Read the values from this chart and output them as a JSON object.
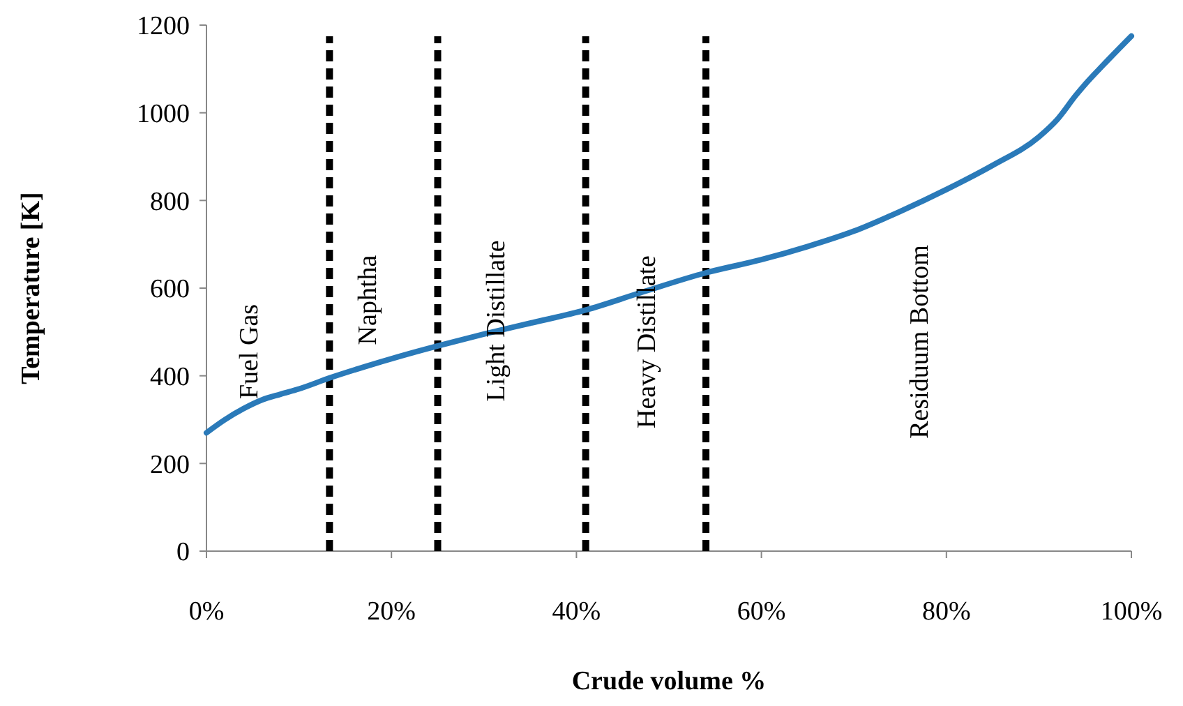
{
  "chart_data": {
    "type": "line",
    "xlabel": "Crude volume %",
    "ylabel": "Temperature [K]",
    "x": [
      0,
      2,
      4,
      6,
      8,
      10,
      13.3,
      17,
      21,
      25,
      30,
      35,
      41,
      47,
      54,
      60,
      65,
      70,
      75,
      80,
      85,
      90,
      92,
      94,
      95,
      97,
      100
    ],
    "series": [
      {
        "color": "#2a7ab9",
        "values": [
          270,
          300,
          325,
          345,
          358,
          370,
          395,
          420,
          445,
          468,
          495,
          520,
          550,
          590,
          635,
          665,
          695,
          730,
          775,
          825,
          880,
          945,
          985,
          1040,
          1065,
          1110,
          1175
        ]
      }
    ],
    "xlim": [
      0,
      100
    ],
    "xticks": [
      {
        "value": 0,
        "label": "0%"
      },
      {
        "value": 20,
        "label": "20%"
      },
      {
        "value": 40,
        "label": "40%"
      },
      {
        "value": 60,
        "label": "60%"
      },
      {
        "value": 80,
        "label": "80%"
      },
      {
        "value": 100,
        "label": "100%"
      }
    ],
    "ylim": [
      0,
      1200
    ],
    "yticks": [
      0,
      200,
      400,
      600,
      800,
      1000,
      1200
    ],
    "grid": false,
    "marker": "none",
    "line_style": "solid",
    "ref_lines": [
      {
        "axis": "x",
        "value": 13.3,
        "color": "#000000",
        "line_style": "dashed"
      },
      {
        "axis": "x",
        "value": 25,
        "color": "#000000",
        "line_style": "dashed"
      },
      {
        "axis": "x",
        "value": 41,
        "color": "#000000",
        "line_style": "dashed"
      },
      {
        "axis": "x",
        "value": 54,
        "color": "#000000",
        "line_style": "dashed"
      }
    ],
    "annotations": [
      "Fuel Gas",
      "Naphtha",
      "Light Distillate",
      "Heavy Distillate",
      "Residuum Bottom"
    ]
  }
}
